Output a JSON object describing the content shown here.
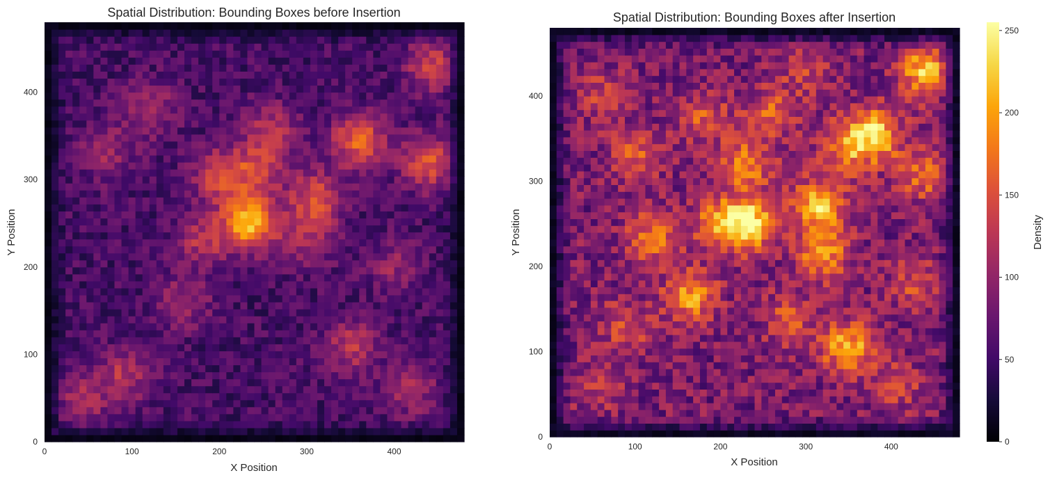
{
  "chart_data": [
    {
      "type": "heatmap",
      "title": "Spatial Distribution: Bounding Boxes before Insertion",
      "xlabel": "X Position",
      "ylabel": "Y Position",
      "xlim": [
        0,
        480
      ],
      "ylim": [
        0,
        480
      ],
      "xticks": [
        "0",
        "100",
        "200",
        "300",
        "400"
      ],
      "yticks": [
        "0",
        "100",
        "200",
        "300",
        "400"
      ],
      "colormap": "inferno",
      "grid": false,
      "base_density": 55,
      "hotspots": [
        {
          "x": 235,
          "y": 252,
          "value": 215
        },
        {
          "x": 360,
          "y": 345,
          "value": 165
        },
        {
          "x": 440,
          "y": 320,
          "value": 150
        },
        {
          "x": 310,
          "y": 278,
          "value": 150
        },
        {
          "x": 200,
          "y": 305,
          "value": 140
        },
        {
          "x": 245,
          "y": 315,
          "value": 130
        },
        {
          "x": 180,
          "y": 230,
          "value": 120
        },
        {
          "x": 90,
          "y": 75,
          "value": 120
        },
        {
          "x": 350,
          "y": 110,
          "value": 125
        },
        {
          "x": 445,
          "y": 430,
          "value": 140
        },
        {
          "x": 260,
          "y": 360,
          "value": 115
        },
        {
          "x": 120,
          "y": 380,
          "value": 115
        },
        {
          "x": 420,
          "y": 60,
          "value": 110
        },
        {
          "x": 40,
          "y": 45,
          "value": 110
        },
        {
          "x": 70,
          "y": 330,
          "value": 105
        },
        {
          "x": 300,
          "y": 230,
          "value": 110
        },
        {
          "x": 160,
          "y": 160,
          "value": 105
        },
        {
          "x": 400,
          "y": 200,
          "value": 100
        }
      ]
    },
    {
      "type": "heatmap",
      "title": "Spatial Distribution: Bounding Boxes after Insertion",
      "xlabel": "X Position",
      "ylabel": "Y Position",
      "xlim": [
        0,
        480
      ],
      "ylim": [
        0,
        480
      ],
      "xticks": [
        "0",
        "100",
        "200",
        "300",
        "400"
      ],
      "yticks": [
        "0",
        "100",
        "200",
        "300",
        "400"
      ],
      "colormap": "inferno",
      "grid": false,
      "base_density": 85,
      "hotspots": [
        {
          "x": 235,
          "y": 250,
          "value": 230
        },
        {
          "x": 380,
          "y": 355,
          "value": 225
        },
        {
          "x": 440,
          "y": 428,
          "value": 215
        },
        {
          "x": 315,
          "y": 272,
          "value": 215
        },
        {
          "x": 350,
          "y": 105,
          "value": 210
        },
        {
          "x": 165,
          "y": 165,
          "value": 195
        },
        {
          "x": 200,
          "y": 250,
          "value": 185
        },
        {
          "x": 320,
          "y": 215,
          "value": 185
        },
        {
          "x": 230,
          "y": 320,
          "value": 175
        },
        {
          "x": 120,
          "y": 235,
          "value": 170
        },
        {
          "x": 345,
          "y": 340,
          "value": 170
        },
        {
          "x": 440,
          "y": 310,
          "value": 175
        },
        {
          "x": 180,
          "y": 375,
          "value": 150
        },
        {
          "x": 260,
          "y": 380,
          "value": 155
        },
        {
          "x": 100,
          "y": 330,
          "value": 150
        },
        {
          "x": 90,
          "y": 130,
          "value": 145
        },
        {
          "x": 280,
          "y": 140,
          "value": 150
        },
        {
          "x": 430,
          "y": 180,
          "value": 145
        },
        {
          "x": 60,
          "y": 60,
          "value": 135
        },
        {
          "x": 410,
          "y": 60,
          "value": 135
        },
        {
          "x": 60,
          "y": 400,
          "value": 130
        },
        {
          "x": 300,
          "y": 430,
          "value": 130
        }
      ]
    }
  ],
  "colorbar": {
    "label": "Density",
    "min": 0,
    "max": 255,
    "ticks": [
      0,
      50,
      100,
      150,
      200,
      250
    ],
    "tick_labels": [
      "0",
      "50",
      "100",
      "150",
      "200",
      "250"
    ]
  }
}
